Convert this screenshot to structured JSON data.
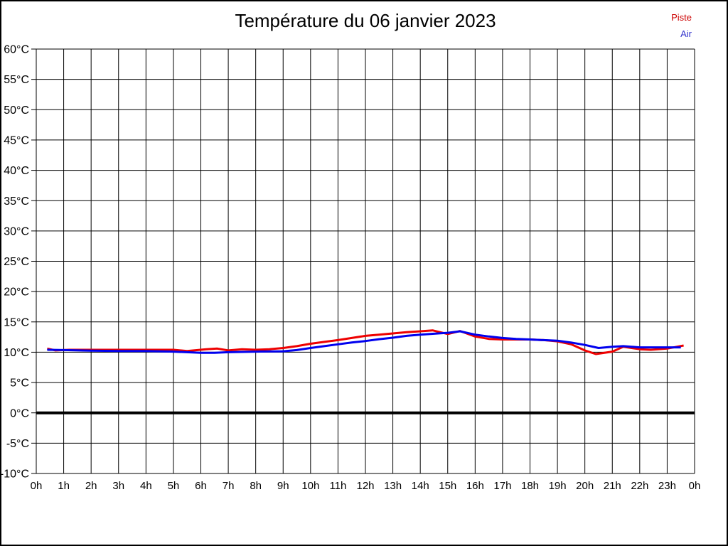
{
  "chart_data": {
    "type": "line",
    "title": "Température du 06 janvier 2023",
    "xlabel": "",
    "ylabel": "",
    "xlim": [
      0,
      24
    ],
    "ylim": [
      -10,
      60
    ],
    "grid": true,
    "zero_line_thick": true,
    "legend_position": "top-right",
    "y_ticks": [
      60,
      55,
      50,
      45,
      40,
      35,
      30,
      25,
      20,
      15,
      10,
      5,
      0,
      -5,
      -10
    ],
    "y_tick_suffix": "°C",
    "x_ticks": [
      0,
      1,
      2,
      3,
      4,
      5,
      6,
      7,
      8,
      9,
      10,
      11,
      12,
      13,
      14,
      15,
      16,
      17,
      18,
      19,
      20,
      21,
      22,
      23,
      24
    ],
    "x_tick_labels": [
      "0h",
      "1h",
      "2h",
      "3h",
      "4h",
      "5h",
      "6h",
      "7h",
      "8h",
      "9h",
      "10h",
      "11h",
      "12h",
      "13h",
      "14h",
      "15h",
      "16h",
      "17h",
      "18h",
      "19h",
      "20h",
      "21h",
      "22h",
      "23h",
      "0h"
    ],
    "series": [
      {
        "name": "Piste",
        "color": "#ee0000",
        "legend_text_color": "#cc0000",
        "x": [
          0.4,
          0.7,
          1.2,
          2,
          3,
          4,
          5,
          5.5,
          6.2,
          6.6,
          7,
          7.5,
          8,
          8.5,
          9,
          9.5,
          10,
          10.5,
          11,
          11.5,
          12,
          12.5,
          13,
          13.5,
          14,
          14.45,
          15,
          15.45,
          16,
          16.5,
          17,
          17.5,
          18,
          18.5,
          19,
          19.5,
          20,
          20.4,
          21,
          21.4,
          22,
          22.4,
          23,
          23.6
        ],
        "values": [
          10.6,
          10.3,
          10.4,
          10.4,
          10.4,
          10.4,
          10.4,
          10.2,
          10.5,
          10.6,
          10.3,
          10.5,
          10.4,
          10.5,
          10.7,
          11.0,
          11.4,
          11.7,
          12.0,
          12.35,
          12.7,
          12.9,
          13.1,
          13.3,
          13.45,
          13.6,
          13.0,
          13.5,
          12.6,
          12.2,
          12.1,
          12.1,
          12.1,
          12.0,
          11.8,
          11.3,
          10.3,
          9.7,
          10.1,
          10.9,
          10.5,
          10.4,
          10.6,
          11.1
        ]
      },
      {
        "name": "Air",
        "color": "#0000ee",
        "legend_text_color": "#3333cc",
        "x": [
          0.4,
          1,
          2,
          3,
          4,
          5,
          6,
          6.5,
          7,
          8,
          9,
          9.5,
          10,
          10.5,
          11,
          11.5,
          12,
          12.5,
          13,
          13.5,
          14,
          14.5,
          15,
          15.45,
          16,
          16.5,
          17,
          17.5,
          18,
          18.5,
          19,
          19.5,
          20,
          20.5,
          21,
          21.4,
          22,
          23,
          23.5
        ],
        "values": [
          10.4,
          10.35,
          10.25,
          10.2,
          10.2,
          10.1,
          9.9,
          9.9,
          10.0,
          10.1,
          10.15,
          10.35,
          10.7,
          11.0,
          11.3,
          11.6,
          11.85,
          12.15,
          12.4,
          12.7,
          12.9,
          13.05,
          13.2,
          13.45,
          12.9,
          12.6,
          12.35,
          12.2,
          12.1,
          12.0,
          11.9,
          11.6,
          11.2,
          10.7,
          10.9,
          11.0,
          10.8,
          10.8,
          10.8
        ]
      }
    ]
  }
}
